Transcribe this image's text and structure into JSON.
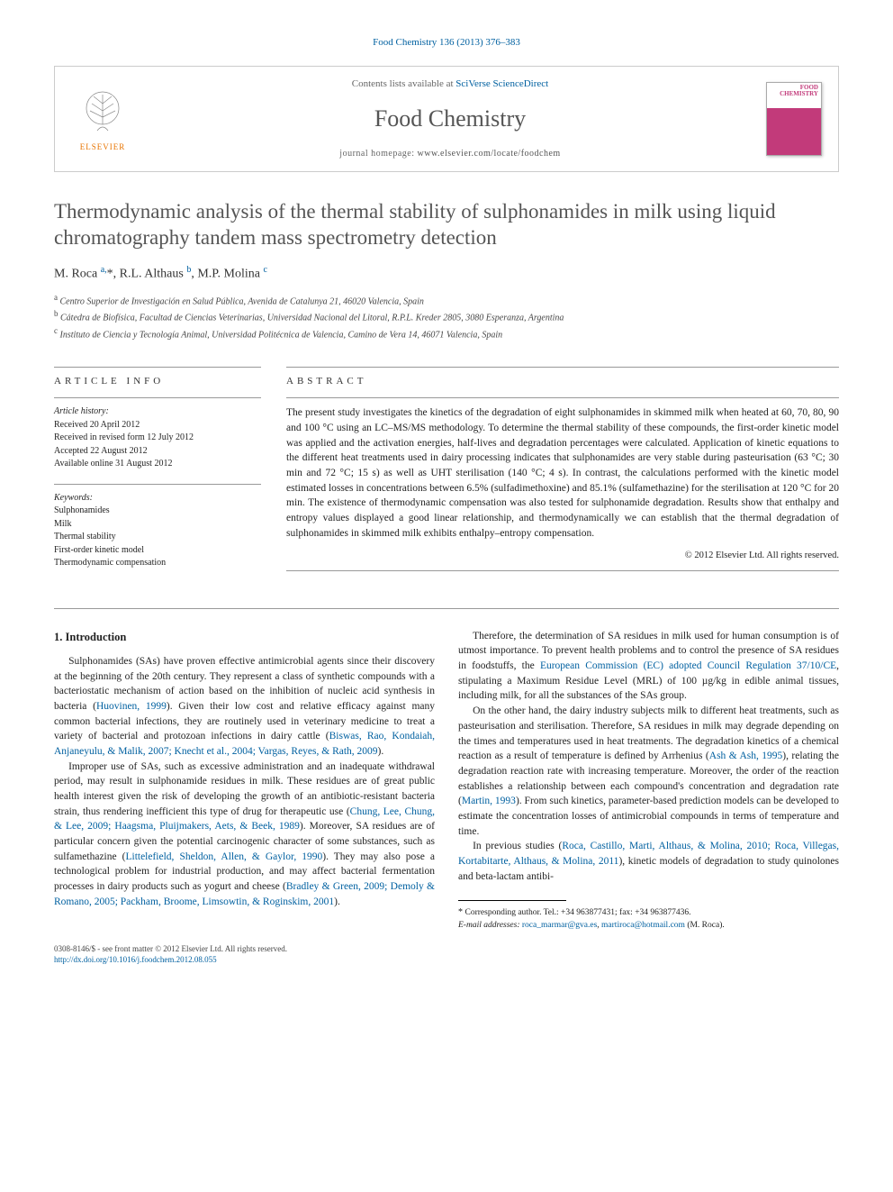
{
  "topcite": "Food Chemistry 136 (2013) 376–383",
  "masthead": {
    "contents_line_pre": "Contents lists available at ",
    "contents_link": "SciVerse ScienceDirect",
    "journal": "Food Chemistry",
    "homepage_pre": "journal homepage: ",
    "homepage_url": "www.elsevier.com/locate/foodchem",
    "publisher": "ELSEVIER",
    "cover_brand": "FOOD CHEMISTRY"
  },
  "title": "Thermodynamic analysis of the thermal stability of sulphonamides in milk using liquid chromatography tandem mass spectrometry detection",
  "authors_html": "M. Roca <sup>a,</sup><span class='star'>*</span>, R.L. Althaus <sup>b</sup>, M.P. Molina <sup>c</sup>",
  "affiliations": [
    {
      "sup": "a",
      "text": "Centro Superior de Investigación en Salud Pública, Avenida de Catalunya 21, 46020 Valencia, Spain"
    },
    {
      "sup": "b",
      "text": "Cátedra de Biofísica, Facultad de Ciencias Veterinarias, Universidad Nacional del Litoral, R.P.L. Kreder 2805, 3080 Esperanza, Argentina"
    },
    {
      "sup": "c",
      "text": "Instituto de Ciencia y Tecnología Animal, Universidad Politécnica de Valencia, Camino de Vera 14, 46071 Valencia, Spain"
    }
  ],
  "articleinfo": {
    "head": "ARTICLE INFO",
    "history_label": "Article history:",
    "history": [
      "Received 20 April 2012",
      "Received in revised form 12 July 2012",
      "Accepted 22 August 2012",
      "Available online 31 August 2012"
    ],
    "keywords_label": "Keywords:",
    "keywords": [
      "Sulphonamides",
      "Milk",
      "Thermal stability",
      "First-order kinetic model",
      "Thermodynamic compensation"
    ]
  },
  "abstract": {
    "head": "ABSTRACT",
    "text": "The present study investigates the kinetics of the degradation of eight sulphonamides in skimmed milk when heated at 60, 70, 80, 90 and 100 °C using an LC–MS/MS methodology. To determine the thermal stability of these compounds, the first-order kinetic model was applied and the activation energies, half-lives and degradation percentages were calculated. Application of kinetic equations to the different heat treatments used in dairy processing indicates that sulphonamides are very stable during pasteurisation (63 °C; 30 min and 72 °C; 15 s) as well as UHT sterilisation (140 °C; 4 s). In contrast, the calculations performed with the kinetic model estimated losses in concentrations between 6.5% (sulfadimethoxine) and 85.1% (sulfamethazine) for the sterilisation at 120 °C for 20 min. The existence of thermodynamic compensation was also tested for sulphonamide degradation. Results show that enthalpy and entropy values displayed a good linear relationship, and thermodynamically we can establish that the thermal degradation of sulphonamides in skimmed milk exhibits enthalpy–entropy compensation.",
    "copyright": "© 2012 Elsevier Ltd. All rights reserved."
  },
  "body": {
    "intro_head": "1. Introduction",
    "p1_a": "Sulphonamides (SAs) have proven effective antimicrobial agents since their discovery at the beginning of the 20th century. They represent a class of synthetic compounds with a bacteriostatic mechanism of action based on the inhibition of nucleic acid synthesis in bacteria (",
    "p1_ref1": "Huovinen, 1999",
    "p1_b": "). Given their low cost and relative efficacy against many common bacterial infections, they are routinely used in veterinary medicine to treat a variety of bacterial and protozoan infections in dairy cattle (",
    "p1_ref2": "Biswas, Rao, Kondaiah, Anjaneyulu, & Malik, 2007; Knecht et al., 2004; Vargas, Reyes, & Rath, 2009",
    "p1_c": ").",
    "p2_a": "Improper use of SAs, such as excessive administration and an inadequate withdrawal period, may result in sulphonamide residues in milk. These residues are of great public health interest given the risk of developing the growth of an antibiotic-resistant bacteria strain, thus rendering inefficient this type of drug for therapeutic use (",
    "p2_ref1": "Chung, Lee, Chung, & Lee, 2009; Haagsma, Pluijmakers, Aets, & Beek, 1989",
    "p2_b": "). Moreover, SA residues are of particular concern given the potential carcinogenic character of some substances, such as sulfamethazine (",
    "p2_ref2": "Littelefield, Sheldon, Allen, & Gaylor, 1990",
    "p2_c": "). They may also pose a technological problem for industrial production, and may affect bacterial fermentation processes in dairy products such as yogurt and cheese (",
    "p2_ref3": "Bradley & Green, 2009; Demoly & Romano, 2005; Packham, Broome, Limsowtin, & Roginskim, 2001",
    "p2_d": ").",
    "p3_a": "Therefore, the determination of SA residues in milk used for human consumption is of utmost importance. To prevent health problems and to control the presence of SA residues in foodstuffs, the ",
    "p3_ref1": "European Commission (EC) adopted Council Regulation 37/10/CE",
    "p3_b": ", stipulating a Maximum Residue Level (MRL) of 100 µg/kg in edible animal tissues, including milk, for all the substances of the SAs group.",
    "p4_a": "On the other hand, the dairy industry subjects milk to different heat treatments, such as pasteurisation and sterilisation. Therefore, SA residues in milk may degrade depending on the times and temperatures used in heat treatments. The degradation kinetics of a chemical reaction as a result of temperature is defined by Arrhenius (",
    "p4_ref1": "Ash & Ash, 1995",
    "p4_b": "), relating the degradation reaction rate with increasing temperature. Moreover, the order of the reaction establishes a relationship between each compound's concentration and degradation rate (",
    "p4_ref2": "Martin, 1993",
    "p4_c": "). From such kinetics, parameter-based prediction models can be developed to estimate the concentration losses of antimicrobial compounds in terms of temperature and time.",
    "p5_a": "In previous studies (",
    "p5_ref1": "Roca, Castillo, Marti, Althaus, & Molina, 2010; Roca, Villegas, Kortabitarte, Althaus, & Molina, 2011",
    "p5_b": "), kinetic models of degradation to study quinolones and beta-lactam antibi-"
  },
  "footnotes": {
    "corr": "Corresponding author. Tel.: +34 963877431; fax: +34 963877436.",
    "email_label": "E-mail addresses:",
    "email1": "roca_marmar@gva.es",
    "email2": "martiroca@hotmail.com",
    "email_tail": " (M. Roca)."
  },
  "bottombar": {
    "l1": "0308-8146/$ - see front matter © 2012 Elsevier Ltd. All rights reserved.",
    "doi": "http://dx.doi.org/10.1016/j.foodchem.2012.08.055"
  },
  "colors": {
    "link": "#0060a0",
    "elsevier": "#e87400",
    "cover": "#c23a7a",
    "rule": "#999999"
  }
}
